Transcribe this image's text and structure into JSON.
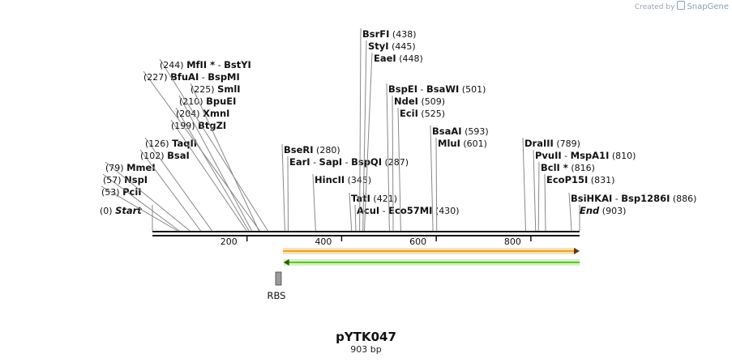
{
  "app": {
    "credit_prefix": "Created by",
    "credit_brand": "SnapGene",
    "credit_icon": "snapgene-logo-icon"
  },
  "plasmid": {
    "name": "pYTK047",
    "length_label": "903 bp",
    "length_bp": 903
  },
  "axis": {
    "ticks": [
      {
        "bp": 200,
        "label": "200"
      },
      {
        "bp": 400,
        "label": "400"
      },
      {
        "bp": 600,
        "label": "600"
      },
      {
        "bp": 800,
        "label": "800"
      }
    ]
  },
  "features": [
    {
      "name": "forward-arrow",
      "start_bp": 276,
      "end_bp": 903,
      "direction": "forward",
      "color": "#f0a12a"
    },
    {
      "name": "reverse-arrow",
      "start_bp": 260,
      "end_bp": 903,
      "direction": "reverse",
      "color": "#5fc42a"
    },
    {
      "name": "RBS",
      "label": "RBS",
      "start_bp": 260,
      "end_bp": 270,
      "color": "#9a9a9a"
    }
  ],
  "sites": [
    {
      "pos": "(0)",
      "bp": 0,
      "segments": [
        {
          "t": "Start",
          "style": "italic"
        }
      ]
    },
    {
      "pos": "(53)",
      "bp": 53,
      "segments": [
        {
          "t": "PciI",
          "style": "bold"
        }
      ]
    },
    {
      "pos": "(57)",
      "bp": 57,
      "segments": [
        {
          "t": "NspI",
          "style": "bold"
        }
      ]
    },
    {
      "pos": "(79)",
      "bp": 79,
      "segments": [
        {
          "t": "MmeI",
          "style": "bold"
        }
      ]
    },
    {
      "pos": "(102)",
      "bp": 102,
      "segments": [
        {
          "t": "BsaI",
          "style": "bold"
        }
      ]
    },
    {
      "pos": "(126)",
      "bp": 126,
      "segments": [
        {
          "t": "TaqII",
          "style": "bold"
        }
      ]
    },
    {
      "pos": "(199)",
      "bp": 199,
      "segments": [
        {
          "t": "BtgZI",
          "style": "bold"
        }
      ]
    },
    {
      "pos": "(204)",
      "bp": 204,
      "segments": [
        {
          "t": "XmnI",
          "style": "bold"
        }
      ]
    },
    {
      "pos": "(210)",
      "bp": 210,
      "segments": [
        {
          "t": "BpuEI",
          "style": "bold"
        }
      ]
    },
    {
      "pos": "(225)",
      "bp": 225,
      "segments": [
        {
          "t": "SmlI",
          "style": "bold"
        }
      ]
    },
    {
      "pos": "(227)",
      "bp": 227,
      "segments": [
        {
          "t": "BfuAI",
          "style": "bold"
        },
        {
          "t": " - ",
          "style": "plain"
        },
        {
          "t": "BspMI",
          "style": "bold"
        }
      ]
    },
    {
      "pos": "(244)",
      "bp": 244,
      "segments": [
        {
          "t": "MfII *",
          "style": "bold"
        },
        {
          "t": " - ",
          "style": "plain"
        },
        {
          "t": "BstYI",
          "style": "bold"
        }
      ]
    },
    {
      "pos": "(280)",
      "bp": 280,
      "segments": [
        {
          "t": "BseRI",
          "style": "bold"
        }
      ]
    },
    {
      "pos": "(287)",
      "bp": 287,
      "segments": [
        {
          "t": "EarI",
          "style": "bold"
        },
        {
          "t": " - ",
          "style": "plain"
        },
        {
          "t": "SapI",
          "style": "bold"
        },
        {
          "t": " - ",
          "style": "plain"
        },
        {
          "t": "BspQI",
          "style": "bold"
        }
      ]
    },
    {
      "pos": "(345)",
      "bp": 345,
      "segments": [
        {
          "t": "HincII",
          "style": "bold"
        }
      ]
    },
    {
      "pos": "(421)",
      "bp": 421,
      "segments": [
        {
          "t": "TatI",
          "style": "bold"
        }
      ]
    },
    {
      "pos": "(430)",
      "bp": 430,
      "segments": [
        {
          "t": "AcuI",
          "style": "bold"
        },
        {
          "t": " - ",
          "style": "plain"
        },
        {
          "t": "Eco57MI",
          "style": "bold"
        }
      ]
    },
    {
      "pos": "(438)",
      "bp": 438,
      "segments": [
        {
          "t": "BsrFI",
          "style": "bold"
        }
      ]
    },
    {
      "pos": "(445)",
      "bp": 445,
      "segments": [
        {
          "t": "StyI",
          "style": "bold"
        }
      ]
    },
    {
      "pos": "(448)",
      "bp": 448,
      "segments": [
        {
          "t": "EaeI",
          "style": "bold"
        }
      ]
    },
    {
      "pos": "(501)",
      "bp": 501,
      "segments": [
        {
          "t": "BspEI",
          "style": "bold"
        },
        {
          "t": " - ",
          "style": "plain"
        },
        {
          "t": "BsaWI",
          "style": "bold"
        }
      ]
    },
    {
      "pos": "(509)",
      "bp": 509,
      "segments": [
        {
          "t": "NdeI",
          "style": "bold"
        }
      ]
    },
    {
      "pos": "(525)",
      "bp": 525,
      "segments": [
        {
          "t": "EciI",
          "style": "bold"
        }
      ]
    },
    {
      "pos": "(593)",
      "bp": 593,
      "segments": [
        {
          "t": "BsaAI",
          "style": "bold"
        }
      ]
    },
    {
      "pos": "(601)",
      "bp": 601,
      "segments": [
        {
          "t": "MluI",
          "style": "bold"
        }
      ]
    },
    {
      "pos": "(789)",
      "bp": 789,
      "segments": [
        {
          "t": "DraIII",
          "style": "bold"
        }
      ]
    },
    {
      "pos": "(810)",
      "bp": 810,
      "segments": [
        {
          "t": "PvuII",
          "style": "bold"
        },
        {
          "t": " - ",
          "style": "plain"
        },
        {
          "t": "MspA1I",
          "style": "bold"
        }
      ]
    },
    {
      "pos": "(816)",
      "bp": 816,
      "segments": [
        {
          "t": "BclI *",
          "style": "bold"
        }
      ]
    },
    {
      "pos": "(831)",
      "bp": 831,
      "segments": [
        {
          "t": "EcoP15I",
          "style": "bold"
        }
      ]
    },
    {
      "pos": "(886)",
      "bp": 886,
      "segments": [
        {
          "t": "BsiHKAI",
          "style": "bold"
        },
        {
          "t": " - ",
          "style": "plain"
        },
        {
          "t": "Bsp1286I",
          "style": "bold"
        }
      ]
    },
    {
      "pos": "(903)",
      "bp": 903,
      "segments": [
        {
          "t": "End",
          "style": "italic"
        }
      ]
    }
  ]
}
